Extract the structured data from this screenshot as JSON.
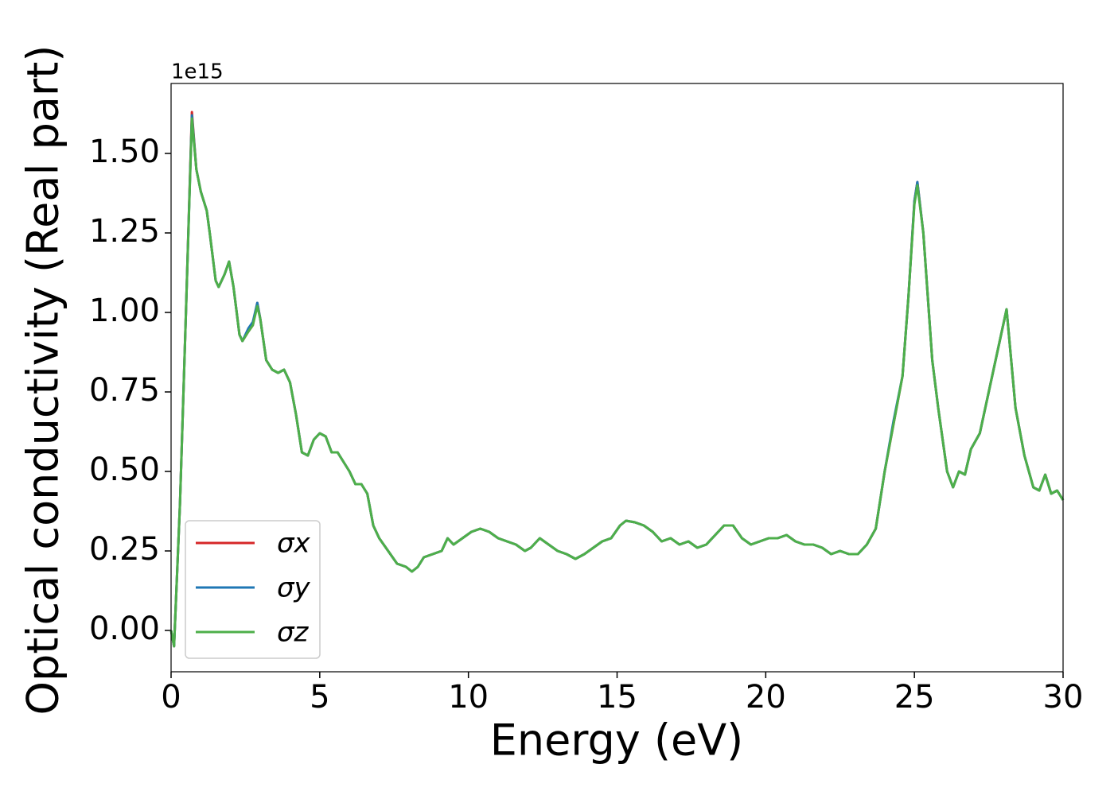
{
  "chart_data": {
    "type": "line",
    "x_label": "Energy (eV)",
    "y_label": "Optical conductivity (Real part)",
    "y_offset_label": "1e15",
    "x": [
      0,
      0.1,
      0.3,
      0.5,
      0.7,
      0.85,
      1.0,
      1.2,
      1.3,
      1.5,
      1.6,
      1.8,
      1.95,
      2.1,
      2.3,
      2.4,
      2.6,
      2.75,
      2.9,
      3.0,
      3.2,
      3.4,
      3.6,
      3.8,
      4.0,
      4.2,
      4.4,
      4.6,
      4.8,
      5.0,
      5.2,
      5.4,
      5.6,
      5.8,
      6.0,
      6.2,
      6.4,
      6.6,
      6.8,
      7.0,
      7.3,
      7.6,
      7.9,
      8.1,
      8.3,
      8.5,
      8.8,
      9.1,
      9.3,
      9.5,
      9.8,
      10.1,
      10.4,
      10.7,
      11.0,
      11.3,
      11.6,
      11.9,
      12.1,
      12.4,
      12.7,
      13.0,
      13.3,
      13.6,
      13.9,
      14.2,
      14.5,
      14.8,
      15.1,
      15.3,
      15.6,
      15.9,
      16.2,
      16.5,
      16.8,
      17.1,
      17.4,
      17.7,
      18.0,
      18.3,
      18.6,
      18.9,
      19.2,
      19.5,
      19.8,
      20.1,
      20.4,
      20.7,
      21.0,
      21.3,
      21.6,
      21.9,
      22.2,
      22.5,
      22.8,
      23.1,
      23.4,
      23.7,
      24.0,
      24.3,
      24.6,
      24.8,
      25.0,
      25.1,
      25.3,
      25.6,
      25.8,
      26.1,
      26.3,
      26.5,
      26.7,
      26.9,
      27.2,
      27.5,
      27.8,
      28.1,
      28.4,
      28.7,
      29.0,
      29.2,
      29.4,
      29.6,
      29.8,
      30
    ],
    "series": [
      {
        "name": "σx",
        "color": "#d62728",
        "values": [
          0,
          -0.05,
          0.4,
          1.0,
          1.63,
          1.45,
          1.38,
          1.32,
          1.25,
          1.1,
          1.08,
          1.12,
          1.16,
          1.08,
          0.93,
          0.91,
          0.94,
          0.96,
          1.03,
          0.98,
          0.85,
          0.82,
          0.81,
          0.82,
          0.78,
          0.68,
          0.56,
          0.55,
          0.6,
          0.62,
          0.61,
          0.56,
          0.56,
          0.53,
          0.5,
          0.46,
          0.46,
          0.43,
          0.33,
          0.29,
          0.25,
          0.21,
          0.2,
          0.185,
          0.2,
          0.23,
          0.24,
          0.25,
          0.29,
          0.27,
          0.29,
          0.31,
          0.32,
          0.31,
          0.29,
          0.28,
          0.27,
          0.25,
          0.26,
          0.29,
          0.27,
          0.25,
          0.24,
          0.225,
          0.24,
          0.26,
          0.28,
          0.29,
          0.33,
          0.345,
          0.34,
          0.33,
          0.31,
          0.28,
          0.29,
          0.27,
          0.28,
          0.26,
          0.27,
          0.3,
          0.33,
          0.33,
          0.29,
          0.27,
          0.28,
          0.29,
          0.29,
          0.3,
          0.28,
          0.27,
          0.27,
          0.26,
          0.24,
          0.25,
          0.24,
          0.24,
          0.27,
          0.32,
          0.5,
          0.65,
          0.8,
          1.05,
          1.35,
          1.41,
          1.25,
          0.85,
          0.7,
          0.5,
          0.45,
          0.5,
          0.49,
          0.57,
          0.62,
          0.75,
          0.88,
          1.01,
          0.7,
          0.55,
          0.45,
          0.44,
          0.49,
          0.43,
          0.44,
          0.41
        ]
      },
      {
        "name": "σy",
        "color": "#1f77b4",
        "values": [
          0,
          -0.05,
          0.4,
          1.0,
          1.62,
          1.45,
          1.38,
          1.32,
          1.25,
          1.1,
          1.08,
          1.12,
          1.16,
          1.08,
          0.93,
          0.91,
          0.95,
          0.97,
          1.03,
          0.98,
          0.85,
          0.82,
          0.81,
          0.82,
          0.78,
          0.68,
          0.56,
          0.55,
          0.6,
          0.62,
          0.61,
          0.56,
          0.56,
          0.53,
          0.5,
          0.46,
          0.46,
          0.43,
          0.33,
          0.29,
          0.25,
          0.21,
          0.2,
          0.185,
          0.2,
          0.23,
          0.24,
          0.25,
          0.29,
          0.27,
          0.29,
          0.31,
          0.32,
          0.31,
          0.29,
          0.28,
          0.27,
          0.25,
          0.26,
          0.29,
          0.27,
          0.25,
          0.24,
          0.225,
          0.24,
          0.26,
          0.28,
          0.29,
          0.33,
          0.345,
          0.34,
          0.33,
          0.31,
          0.28,
          0.29,
          0.27,
          0.28,
          0.26,
          0.27,
          0.3,
          0.33,
          0.33,
          0.29,
          0.27,
          0.28,
          0.29,
          0.29,
          0.3,
          0.28,
          0.27,
          0.27,
          0.26,
          0.24,
          0.25,
          0.24,
          0.24,
          0.27,
          0.32,
          0.5,
          0.66,
          0.8,
          1.05,
          1.35,
          1.41,
          1.25,
          0.85,
          0.7,
          0.5,
          0.45,
          0.5,
          0.49,
          0.57,
          0.62,
          0.75,
          0.88,
          1.01,
          0.7,
          0.55,
          0.45,
          0.44,
          0.49,
          0.43,
          0.44,
          0.41
        ]
      },
      {
        "name": "σz",
        "color": "#4daf4a",
        "values": [
          0,
          -0.05,
          0.4,
          1.0,
          1.61,
          1.45,
          1.38,
          1.32,
          1.25,
          1.1,
          1.08,
          1.12,
          1.16,
          1.08,
          0.93,
          0.91,
          0.94,
          0.96,
          1.02,
          0.98,
          0.85,
          0.82,
          0.81,
          0.82,
          0.78,
          0.68,
          0.56,
          0.55,
          0.6,
          0.62,
          0.61,
          0.56,
          0.56,
          0.53,
          0.5,
          0.46,
          0.46,
          0.43,
          0.33,
          0.29,
          0.25,
          0.21,
          0.2,
          0.185,
          0.2,
          0.23,
          0.24,
          0.25,
          0.29,
          0.27,
          0.29,
          0.31,
          0.32,
          0.31,
          0.29,
          0.28,
          0.27,
          0.25,
          0.26,
          0.29,
          0.27,
          0.25,
          0.24,
          0.225,
          0.24,
          0.26,
          0.28,
          0.29,
          0.33,
          0.345,
          0.34,
          0.33,
          0.31,
          0.28,
          0.29,
          0.27,
          0.28,
          0.26,
          0.27,
          0.3,
          0.33,
          0.33,
          0.29,
          0.27,
          0.28,
          0.29,
          0.29,
          0.3,
          0.28,
          0.27,
          0.27,
          0.26,
          0.24,
          0.25,
          0.24,
          0.24,
          0.27,
          0.32,
          0.5,
          0.65,
          0.8,
          1.05,
          1.34,
          1.4,
          1.25,
          0.85,
          0.7,
          0.5,
          0.45,
          0.5,
          0.49,
          0.57,
          0.62,
          0.75,
          0.88,
          1.01,
          0.7,
          0.55,
          0.45,
          0.44,
          0.49,
          0.43,
          0.44,
          0.41
        ]
      }
    ],
    "xlim": [
      0,
      30
    ],
    "xticks": [
      0,
      5,
      10,
      15,
      20,
      25,
      30
    ],
    "ylim": [
      -0.13,
      1.72
    ],
    "yticks": [
      {
        "value": 0,
        "label": "0.00"
      },
      {
        "value": 0.25,
        "label": "0.25"
      },
      {
        "value": 0.5,
        "label": "0.50"
      },
      {
        "value": 0.75,
        "label": "0.75"
      },
      {
        "value": 1.0,
        "label": "1.00"
      },
      {
        "value": 1.25,
        "label": "1.25"
      },
      {
        "value": 1.5,
        "label": "1.50"
      }
    ],
    "grid": false,
    "legend": "lower left"
  }
}
